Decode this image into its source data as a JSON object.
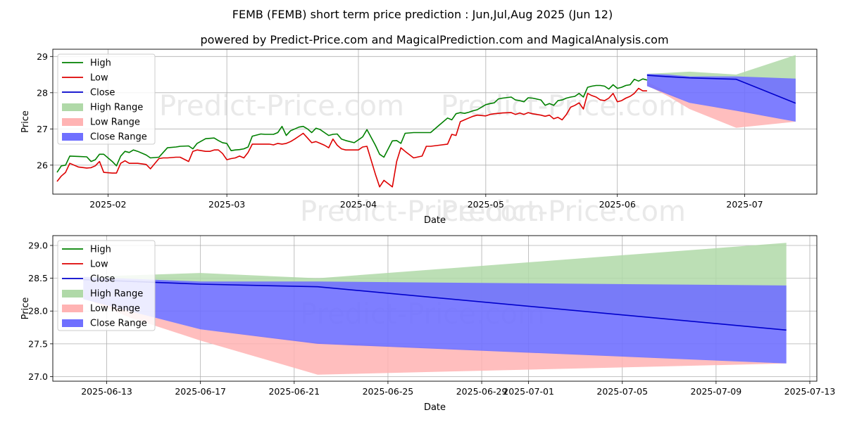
{
  "title": "FEMB (FEMB) short term price prediction : Jun,Jul,Aug 2025 (Jun 12)",
  "subtitle": "powered by Predict-Price.com and MagicalPrediction.com and MagicalAnalysis.com",
  "watermark": "Predict-Price.com",
  "colors": {
    "high": "#008000",
    "low": "#dd0000",
    "close": "#0000cc",
    "high_range": "#b0d9a8",
    "low_range": "#ffb3b3",
    "close_range": "#7070ff"
  },
  "chart_data": [
    {
      "type": "line",
      "name": "top",
      "xlabel": "Date",
      "ylabel": "Price",
      "ylim": [
        25.2,
        29.2
      ],
      "yticks": [
        26,
        27,
        28,
        29
      ],
      "ytick_labels": [
        "26",
        "27",
        "28",
        "29"
      ],
      "xticks": [
        {
          "label": "2025-02",
          "day": 12
        },
        {
          "label": "2025-03",
          "day": 40
        },
        {
          "label": "2025-04",
          "day": 71
        },
        {
          "label": "2025-05",
          "day": 101
        },
        {
          "label": "2025-06",
          "day": 132
        },
        {
          "label": "2025-07",
          "day": 162
        }
      ],
      "xlim": [
        -1,
        179
      ],
      "legend": [
        "High",
        "Low",
        "Close",
        "High Range",
        "Low Range",
        "Close Range"
      ],
      "legend_position": "upper-left",
      "series": [
        {
          "name": "High",
          "x": [
            0,
            1,
            2,
            3,
            5,
            7,
            8,
            9,
            10,
            11,
            13,
            14,
            15,
            16,
            17,
            18,
            19,
            21,
            22,
            24,
            25,
            26,
            28,
            29,
            31,
            32,
            33,
            35,
            36,
            37,
            38,
            39,
            40,
            41,
            42,
            43,
            44,
            45,
            46,
            48,
            49,
            50,
            51,
            52,
            53,
            54,
            55,
            56,
            57,
            58,
            59,
            60,
            61,
            62,
            63,
            64,
            65,
            66,
            67,
            68,
            70,
            71,
            72,
            73,
            75,
            76,
            77,
            79,
            80,
            81,
            82,
            84,
            86,
            87,
            88,
            90,
            92,
            93,
            94,
            95,
            96,
            97,
            98,
            99,
            101,
            102,
            103,
            104,
            105,
            107,
            108,
            109,
            110,
            111,
            112,
            114,
            115,
            116,
            117,
            118,
            119,
            120,
            121,
            122,
            123,
            124,
            125,
            126,
            127,
            128,
            129,
            130,
            131,
            132,
            133,
            134,
            135,
            136,
            137,
            138,
            139
          ],
          "y": [
            25.8,
            25.98,
            26.0,
            26.25,
            26.24,
            26.23,
            26.1,
            26.15,
            26.3,
            26.3,
            26.1,
            25.98,
            26.25,
            26.38,
            26.35,
            26.42,
            26.38,
            26.28,
            26.2,
            26.22,
            26.35,
            26.48,
            26.5,
            26.52,
            26.53,
            26.45,
            26.6,
            26.73,
            26.74,
            26.75,
            26.68,
            26.62,
            26.6,
            26.4,
            26.42,
            26.43,
            26.45,
            26.5,
            26.8,
            26.86,
            26.85,
            26.85,
            26.85,
            26.9,
            27.07,
            26.82,
            26.95,
            27.0,
            27.05,
            27.07,
            27.0,
            26.9,
            27.02,
            26.98,
            26.9,
            26.82,
            26.85,
            26.86,
            26.72,
            26.68,
            26.62,
            26.7,
            26.78,
            26.98,
            26.55,
            26.3,
            26.22,
            26.67,
            26.68,
            26.6,
            26.88,
            26.9,
            26.9,
            26.9,
            26.9,
            27.1,
            27.3,
            27.25,
            27.42,
            27.45,
            27.43,
            27.46,
            27.5,
            27.53,
            27.67,
            27.7,
            27.72,
            27.83,
            27.85,
            27.88,
            27.8,
            27.78,
            27.75,
            27.86,
            27.85,
            27.8,
            27.65,
            27.7,
            27.65,
            27.78,
            27.8,
            27.85,
            27.88,
            27.9,
            27.98,
            27.88,
            28.15,
            28.18,
            28.2,
            28.2,
            28.18,
            28.1,
            28.22,
            28.12,
            28.15,
            28.2,
            28.22,
            28.37,
            28.32,
            28.38,
            28.35
          ]
        },
        {
          "name": "Low",
          "x": [
            0,
            1,
            2,
            3,
            5,
            7,
            8,
            9,
            10,
            11,
            13,
            14,
            15,
            16,
            17,
            18,
            19,
            21,
            22,
            24,
            25,
            26,
            28,
            29,
            31,
            32,
            33,
            35,
            36,
            37,
            38,
            39,
            40,
            41,
            42,
            43,
            44,
            45,
            46,
            48,
            49,
            50,
            51,
            52,
            53,
            54,
            55,
            56,
            57,
            58,
            59,
            60,
            61,
            62,
            63,
            64,
            65,
            66,
            67,
            68,
            70,
            71,
            72,
            73,
            75,
            76,
            77,
            79,
            80,
            81,
            82,
            84,
            86,
            87,
            88,
            90,
            92,
            93,
            94,
            95,
            96,
            97,
            98,
            99,
            101,
            102,
            103,
            104,
            105,
            107,
            108,
            109,
            110,
            111,
            112,
            114,
            115,
            116,
            117,
            118,
            119,
            120,
            121,
            122,
            123,
            124,
            125,
            126,
            127,
            128,
            129,
            130,
            131,
            132,
            133,
            134,
            135,
            136,
            137,
            138,
            139
          ],
          "y": [
            25.55,
            25.7,
            25.8,
            26.05,
            25.95,
            25.92,
            25.93,
            25.98,
            26.1,
            25.8,
            25.78,
            25.78,
            26.05,
            26.12,
            26.05,
            26.05,
            26.05,
            26.02,
            25.9,
            26.18,
            26.2,
            26.2,
            26.22,
            26.22,
            26.1,
            26.38,
            26.42,
            26.38,
            26.38,
            26.42,
            26.42,
            26.32,
            26.15,
            26.18,
            26.2,
            26.25,
            26.2,
            26.35,
            26.58,
            26.58,
            26.58,
            26.58,
            26.56,
            26.6,
            26.58,
            26.6,
            26.65,
            26.72,
            26.8,
            26.88,
            26.75,
            26.62,
            26.65,
            26.6,
            26.55,
            26.48,
            26.72,
            26.55,
            26.45,
            26.42,
            26.42,
            26.42,
            26.5,
            26.52,
            25.75,
            25.4,
            25.58,
            25.4,
            26.1,
            26.48,
            26.38,
            26.2,
            26.25,
            26.52,
            26.52,
            26.55,
            26.58,
            26.85,
            26.82,
            27.2,
            27.25,
            27.3,
            27.35,
            27.38,
            27.36,
            27.4,
            27.42,
            27.43,
            27.44,
            27.45,
            27.4,
            27.44,
            27.4,
            27.45,
            27.42,
            27.38,
            27.35,
            27.38,
            27.28,
            27.32,
            27.25,
            27.4,
            27.6,
            27.65,
            27.72,
            27.55,
            27.98,
            27.92,
            27.88,
            27.8,
            27.78,
            27.85,
            27.98,
            27.75,
            27.78,
            27.85,
            27.9,
            27.98,
            28.12,
            28.05,
            28.05
          ]
        },
        {
          "name": "Close",
          "x": [
            139,
            144,
            149,
            160,
            174
          ],
          "y": [
            28.48,
            28.44,
            28.41,
            28.37,
            27.71
          ]
        }
      ],
      "ranges": [
        {
          "name": "High Range",
          "x": [
            139,
            144,
            149,
            160,
            174
          ],
          "upper": [
            28.52,
            28.55,
            28.58,
            28.5,
            29.04
          ],
          "lower": [
            28.48,
            28.44,
            28.41,
            28.37,
            27.71
          ]
        },
        {
          "name": "Low Range",
          "x": [
            139,
            144,
            149,
            160,
            174
          ],
          "upper": [
            28.3,
            28.0,
            27.72,
            27.52,
            27.2
          ],
          "lower": [
            28.2,
            27.9,
            27.55,
            27.03,
            27.2
          ]
        },
        {
          "name": "Close Range",
          "x": [
            139,
            144,
            149,
            160,
            174
          ],
          "upper": [
            28.52,
            28.5,
            28.45,
            28.45,
            28.39
          ],
          "lower": [
            28.18,
            27.95,
            27.72,
            27.5,
            27.2
          ]
        }
      ]
    },
    {
      "type": "line",
      "name": "bottom",
      "xlabel": "Date",
      "ylabel": "Price",
      "ylim": [
        26.93,
        29.15
      ],
      "yticks": [
        27.0,
        27.5,
        28.0,
        28.5,
        29.0
      ],
      "ytick_labels": [
        "27.0",
        "27.5",
        "28.0",
        "28.5",
        "29.0"
      ],
      "xticks": [
        {
          "label": "2025-06-13",
          "day": 13
        },
        {
          "label": "2025-06-17",
          "day": 17
        },
        {
          "label": "2025-06-21",
          "day": 21
        },
        {
          "label": "2025-06-25",
          "day": 25
        },
        {
          "label": "2025-06-29",
          "day": 29
        },
        {
          "label": "2025-07-01",
          "day": 31
        },
        {
          "label": "2025-07-05",
          "day": 35
        },
        {
          "label": "2025-07-09",
          "day": 39
        },
        {
          "label": "2025-07-13",
          "day": 43
        }
      ],
      "xlim": [
        10.7,
        43.3
      ],
      "legend": [
        "High",
        "Low",
        "Close",
        "High Range",
        "Low Range",
        "Close Range"
      ],
      "legend_position": "upper-left",
      "series": [
        {
          "name": "Close",
          "x": [
            12,
            17,
            22,
            42
          ],
          "y": [
            28.48,
            28.41,
            28.37,
            27.71
          ]
        }
      ],
      "ranges": [
        {
          "name": "High Range",
          "x": [
            12,
            17,
            22,
            42
          ],
          "upper": [
            28.52,
            28.58,
            28.5,
            29.04
          ],
          "lower": [
            28.48,
            28.41,
            28.37,
            27.71
          ]
        },
        {
          "name": "Low Range",
          "x": [
            12,
            14,
            17,
            22,
            42
          ],
          "upper": [
            28.3,
            28.0,
            27.72,
            27.52,
            27.2
          ],
          "lower": [
            28.2,
            27.9,
            27.55,
            27.03,
            27.2
          ]
        },
        {
          "name": "Close Range",
          "x": [
            12,
            17,
            22,
            42
          ],
          "upper": [
            28.52,
            28.45,
            28.45,
            28.39
          ],
          "lower": [
            28.18,
            27.72,
            27.5,
            27.2
          ]
        }
      ]
    }
  ]
}
